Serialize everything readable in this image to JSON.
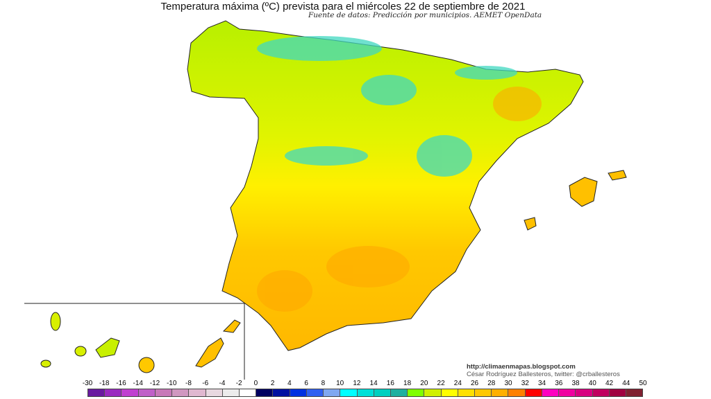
{
  "header": {
    "title": "Temperatura máxima (ºC) prevista para el miércoles 22 de septiembre de 2021",
    "source": "Fuente de datos: Predicción por municipios. AEMET OpenData"
  },
  "credits": {
    "url": "http://climaenmapas.blogspot.com",
    "author": "César Rodríguez Ballesteros, twitter: @crballesteros"
  },
  "legend": {
    "unit": "ºC",
    "labels": [
      "-30",
      "-18",
      "-16",
      "-14",
      "-12",
      "-10",
      "-8",
      "-6",
      "-4",
      "-2",
      "0",
      "2",
      "4",
      "6",
      "8",
      "10",
      "12",
      "14",
      "16",
      "18",
      "20",
      "22",
      "24",
      "26",
      "28",
      "30",
      "32",
      "34",
      "36",
      "38",
      "40",
      "42",
      "44",
      "50"
    ],
    "colors": [
      "#6a1aa0",
      "#9a2ac0",
      "#c040d0",
      "#c060c8",
      "#c878b8",
      "#d098c0",
      "#e0b8d0",
      "#e8d8e0",
      "#ececec",
      "#ffffff",
      "#000060",
      "#0010a0",
      "#0030e0",
      "#3060f0",
      "#80a8f0",
      "#00ffff",
      "#00e0d8",
      "#00d0c0",
      "#20b0a0",
      "#80ff00",
      "#d0f000",
      "#ffff00",
      "#ffe000",
      "#ffc800",
      "#ffb000",
      "#ff8000",
      "#ff0000",
      "#ff00c0",
      "#f000a0",
      "#d80080",
      "#c00060",
      "#a00040",
      "#802030"
    ]
  },
  "map": {
    "region": "Spain",
    "inset": "Canary Islands",
    "dominant_colors": {
      "north": "#c8f000",
      "center": "#f0f000",
      "south": "#ffc000",
      "mountains": "#30d8c0"
    }
  }
}
